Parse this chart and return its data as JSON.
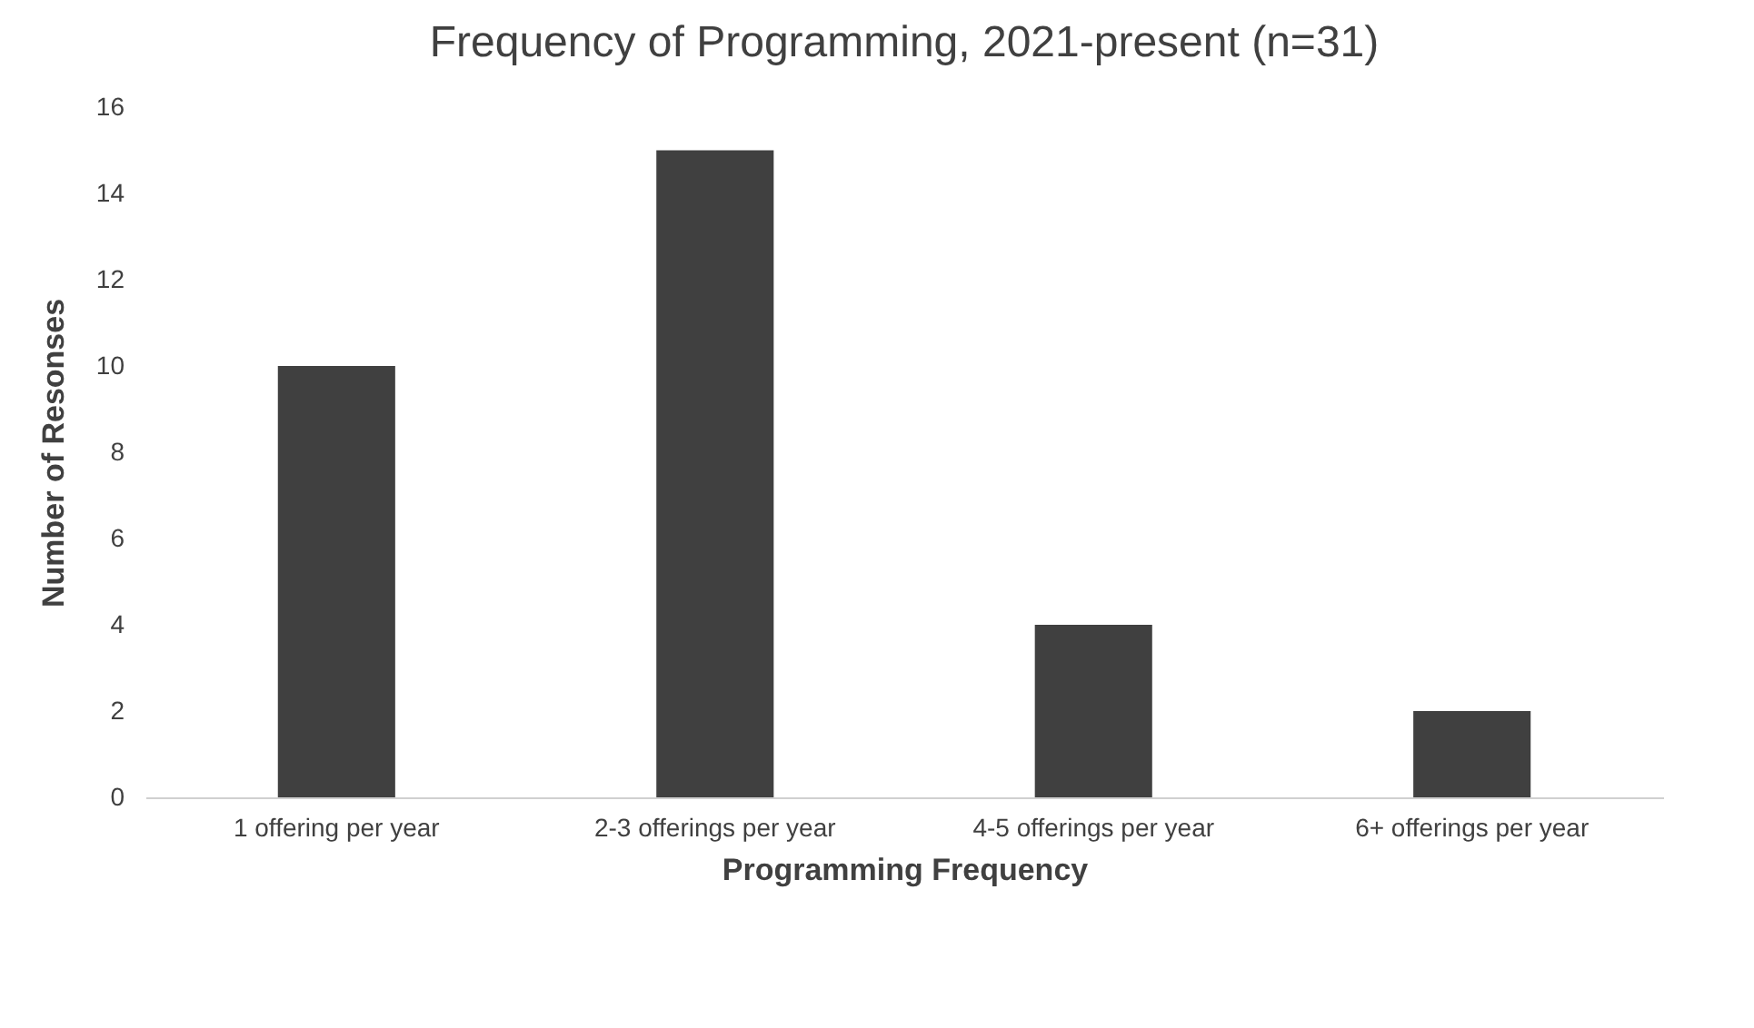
{
  "chart_data": {
    "type": "bar",
    "title": "Frequency of Programming, 2021-present (n=31)",
    "xlabel": "Programming Frequency",
    "ylabel": "Number of Resonses",
    "categories": [
      "1 offering per year",
      "2-3 offerings per year",
      "4-5 offerings per year",
      "6+ offerings per year"
    ],
    "values": [
      10,
      15,
      4,
      2
    ],
    "color": "#404040",
    "ylim": [
      0,
      16
    ],
    "yticks": [
      0,
      2,
      4,
      6,
      8,
      10,
      12,
      14,
      16
    ],
    "grid": false
  }
}
